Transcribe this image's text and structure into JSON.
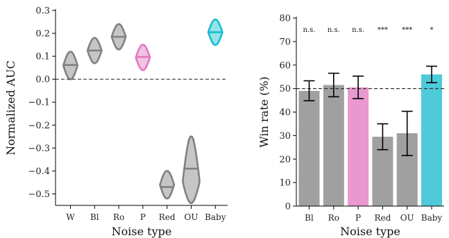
{
  "chart_data": [
    {
      "type": "violin",
      "xlabel": "Noise type",
      "ylabel": "Normalized AUC",
      "ylim": [
        -0.55,
        0.3
      ],
      "yticks": [
        -0.5,
        -0.4,
        -0.3,
        -0.2,
        -0.1,
        0.0,
        0.1,
        0.2,
        0.3
      ],
      "ytick_labels": [
        "−0.5",
        "−0.4",
        "−0.3",
        "−0.2",
        "−0.1",
        "0.0",
        "0.1",
        "0.2",
        "0.3"
      ],
      "reference_line": 0.0,
      "categories": [
        "W",
        "Bl",
        "Ro",
        "P",
        "Red",
        "OU",
        "Baby"
      ],
      "distributions": [
        {
          "category": "W",
          "min": 0.0,
          "max": 0.12,
          "median": 0.062,
          "color": "#808080"
        },
        {
          "category": "Bl",
          "min": 0.07,
          "max": 0.18,
          "median": 0.125,
          "color": "#808080"
        },
        {
          "category": "Ro",
          "min": 0.13,
          "max": 0.24,
          "median": 0.185,
          "color": "#808080"
        },
        {
          "category": "P",
          "min": 0.04,
          "max": 0.15,
          "median": 0.097,
          "color": "#e377c2"
        },
        {
          "category": "Red",
          "min": -0.52,
          "max": -0.4,
          "median": -0.47,
          "color": "#808080"
        },
        {
          "category": "OU",
          "min": -0.54,
          "max": -0.25,
          "median": -0.39,
          "color": "#808080"
        },
        {
          "category": "Baby",
          "min": 0.15,
          "max": 0.26,
          "median": 0.205,
          "color": "#17becf"
        }
      ]
    },
    {
      "type": "bar",
      "xlabel": "Noise type",
      "ylabel": "Win rate (%)",
      "ylim": [
        0,
        80
      ],
      "yticks": [
        0,
        10,
        20,
        30,
        40,
        50,
        60,
        70,
        80
      ],
      "reference_line": 50,
      "categories": [
        "Bl",
        "Ro",
        "P",
        "Red",
        "OU",
        "Baby"
      ],
      "values": [
        49.0,
        51.5,
        50.5,
        29.5,
        31.0,
        56.0
      ],
      "error_low": [
        44.8,
        46.5,
        45.7,
        24.0,
        21.5,
        52.5
      ],
      "error_high": [
        53.3,
        56.5,
        55.3,
        35.0,
        40.3,
        59.5
      ],
      "significance": [
        "n.s.",
        "n.s.",
        "n.s.",
        "***",
        "***",
        "*"
      ],
      "colors": [
        "#a0a0a0",
        "#a0a0a0",
        "#e899cf",
        "#a0a0a0",
        "#a0a0a0",
        "#4ecad9"
      ]
    }
  ]
}
